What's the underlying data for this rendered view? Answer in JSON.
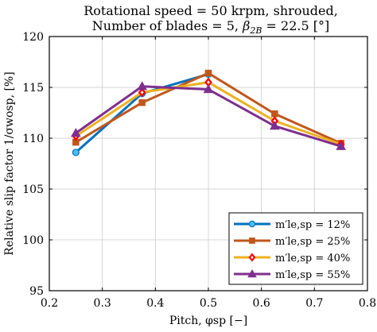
{
  "chart_data": {
    "type": "line",
    "title_lines": [
      "Rotational speed = 50 krpm, shrouded,",
      "Number of blades = 5, β2B = 22.5 [°]"
    ],
    "xlabel": "Pitch, φsp [−]",
    "ylabel": "Relative slip factor 1/σwosp, [%]",
    "xlim": [
      0.2,
      0.8
    ],
    "ylim": [
      95,
      120
    ],
    "xticks": [
      0.2,
      0.3,
      0.4,
      0.5,
      0.6,
      0.7,
      0.8
    ],
    "yticks": [
      95,
      100,
      105,
      110,
      115,
      120
    ],
    "grid": true,
    "legend_position": "bottom-right",
    "series": [
      {
        "name": "m′le,sp = 12%",
        "color": "#0072BD",
        "marker": "circle",
        "marker_fill": "#4DBEEE",
        "x": [
          0.25,
          0.375,
          0.5
        ],
        "y": [
          108.6,
          114.4,
          116.3
        ]
      },
      {
        "name": "m′le,sp = 25%",
        "color": "#C0571B",
        "marker": "square",
        "marker_fill": "#C0571B",
        "x": [
          0.25,
          0.375,
          0.5,
          0.625,
          0.75
        ],
        "y": [
          109.6,
          113.5,
          116.4,
          112.4,
          109.5
        ]
      },
      {
        "name": "m′le,sp = 40%",
        "color": "#EDB120",
        "marker": "diamond",
        "marker_fill": "#FF0000",
        "x": [
          0.25,
          0.375,
          0.5,
          0.625,
          0.75
        ],
        "y": [
          110.2,
          114.5,
          115.5,
          111.7,
          109.4
        ]
      },
      {
        "name": "m′le,sp = 55%",
        "color": "#7E2F8E",
        "marker": "triangle",
        "marker_fill": "#7E2F8E",
        "x": [
          0.25,
          0.375,
          0.5,
          0.625,
          0.75
        ],
        "y": [
          110.5,
          115.1,
          114.8,
          111.2,
          109.2
        ]
      }
    ]
  }
}
